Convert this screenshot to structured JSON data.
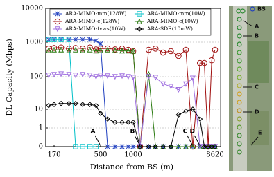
{
  "chart_data": {
    "type": "line",
    "ylabel": "DL Capacity (Mbps)",
    "xlabel": "Distance from BS (m)",
    "x": [
      150,
      170,
      200,
      240,
      280,
      330,
      390,
      450,
      500,
      580,
      680,
      790,
      900,
      1000,
      1200,
      1500,
      1800,
      2200,
      2700,
      3300,
      4000,
      4800,
      5800,
      6500,
      7200,
      7900,
      8620
    ],
    "xlim": [
      140,
      10000
    ],
    "xticks": [
      170,
      500,
      1000,
      8620
    ],
    "ylim": [
      0,
      10000
    ],
    "yticks": [
      0,
      1,
      10,
      100,
      1000,
      10000
    ],
    "grid": true,
    "series": [
      {
        "name": "ARA-MIMO-mm(128W)",
        "color": "#1f3fbf",
        "marker": "x",
        "values": [
          1200,
          1200,
          1200,
          1200,
          1200,
          1200,
          1200,
          1100,
          900,
          0,
          0,
          0,
          0,
          0,
          0,
          0,
          0,
          0,
          0,
          0,
          0,
          0,
          0,
          0,
          0,
          0,
          0
        ]
      },
      {
        "name": "ARA-MIMO-mm(10W)",
        "color": "#00c0c8",
        "marker": "square",
        "values": [
          1200,
          1200,
          1200,
          1200,
          0,
          0,
          0,
          0,
          null,
          null,
          null,
          null,
          null,
          null,
          null,
          null,
          null,
          null,
          null,
          null,
          null,
          null,
          null,
          null,
          null,
          null,
          null
        ]
      },
      {
        "name": "ARA-MIMO-c(128W)",
        "color": "#a01010",
        "marker": "circle",
        "values": [
          650,
          680,
          700,
          650,
          680,
          650,
          700,
          620,
          650,
          660,
          620,
          650,
          600,
          550,
          0,
          600,
          650,
          500,
          550,
          400,
          600,
          0,
          250,
          250,
          0,
          300,
          600
        ]
      },
      {
        "name": "ARA-MIMO-c(10W)",
        "color": "#2a7a10",
        "marker": "triangle",
        "values": [
          580,
          600,
          600,
          580,
          600,
          580,
          600,
          560,
          580,
          600,
          580,
          560,
          560,
          550,
          0,
          120,
          0,
          0,
          0,
          0,
          0,
          0,
          0,
          0,
          0,
          0,
          0
        ]
      },
      {
        "name": "ARA-MIMO-tvws(10W)",
        "color": "#a070e0",
        "marker": "triangle-down",
        "values": [
          110,
          115,
          120,
          115,
          110,
          115,
          110,
          100,
          110,
          105,
          100,
          105,
          100,
          95,
          0,
          100,
          95,
          60,
          50,
          40,
          60,
          90,
          0,
          0,
          0,
          0,
          0
        ]
      },
      {
        "name": "ARA-SDR(10mW)",
        "color": "#000000",
        "marker": "diamond",
        "values": [
          13,
          14,
          15,
          15,
          15,
          14,
          14,
          13,
          6,
          3,
          2,
          2,
          2,
          2,
          0,
          0,
          0,
          0,
          0,
          5,
          8,
          10,
          3,
          0,
          0,
          0,
          0
        ]
      }
    ],
    "annotations": [
      {
        "text": "A",
        "x": 500,
        "y": 0
      },
      {
        "text": "B",
        "x": 1200,
        "y": 0
      },
      {
        "text": "C",
        "x": 4800,
        "y": 0
      },
      {
        "text": "D",
        "x": 5800,
        "y": 0
      }
    ]
  },
  "map": {
    "labels": [
      "BS",
      "A",
      "B",
      "C",
      "D",
      "E"
    ]
  }
}
